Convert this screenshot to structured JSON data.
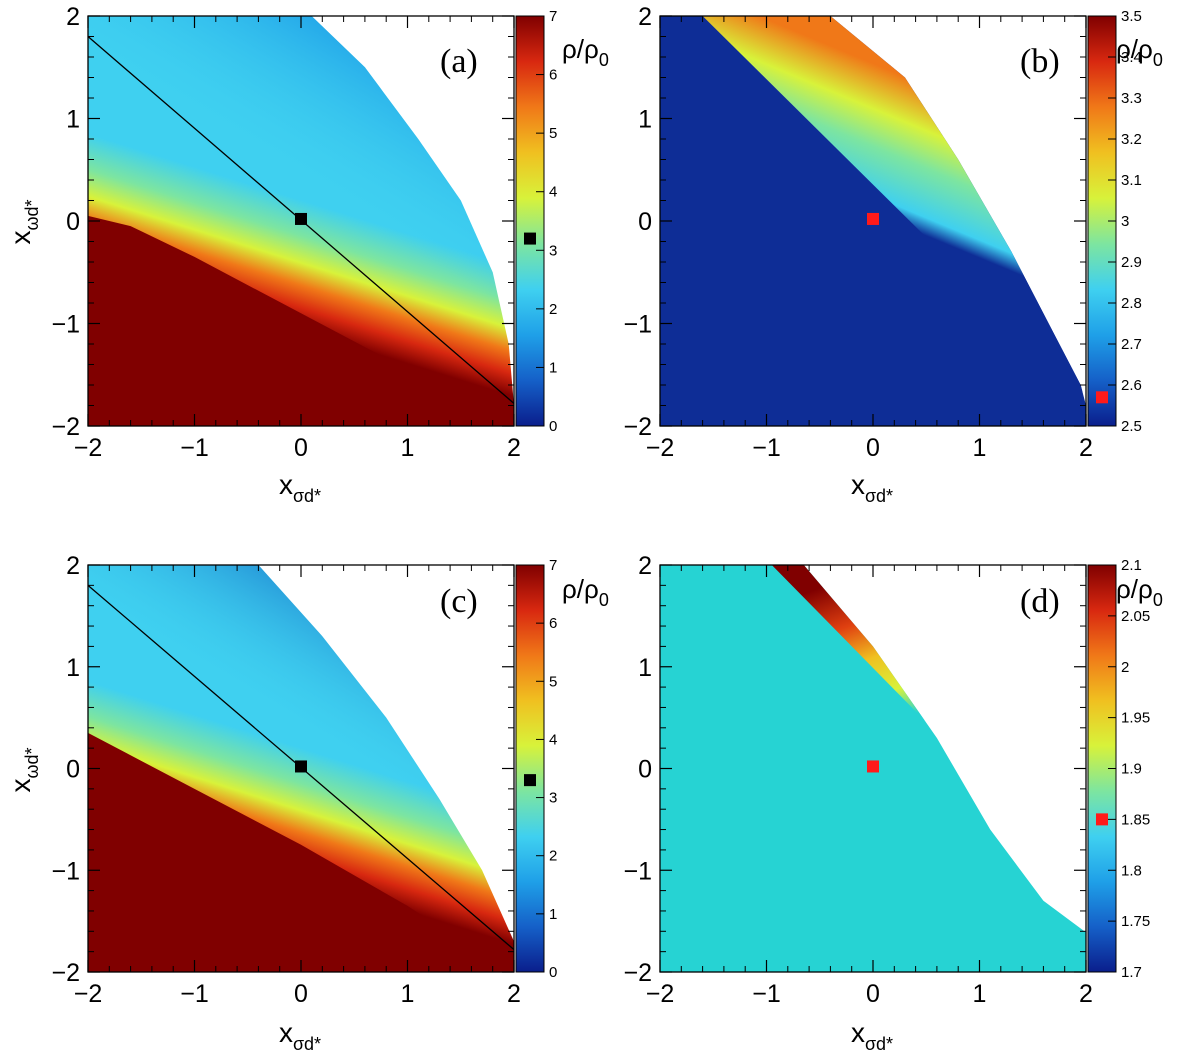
{
  "colors": {
    "colormap": [
      "#0a1e8c",
      "#1560c8",
      "#1fa0e8",
      "#3fd0f0",
      "#7de5a0",
      "#d8f23a",
      "#f0c020",
      "#f07818",
      "#d82810",
      "#800000"
    ],
    "contour_line": "#000000",
    "marker_black": "#000000",
    "marker_red": "#ff1a1a",
    "flat_teal": "#26d3d3",
    "flat_navy": "#0e2d96"
  },
  "chart_data": [
    {
      "id": "a",
      "type": "heatmap",
      "panel_tag": "(a)",
      "xlabel": "x",
      "xlabel_sub": "σd*",
      "ylabel": "x",
      "ylabel_sub": "ωd*",
      "xlim": [
        -2,
        2
      ],
      "ylim": [
        -2,
        2
      ],
      "x_ticks": [
        "−2",
        "−1",
        "0",
        "1",
        "2"
      ],
      "y_ticks": [
        "−2",
        "−1",
        "0",
        "1",
        "2"
      ],
      "colorbar": {
        "label": "ρ/ρ",
        "label_sub": "0",
        "range": [
          0,
          7
        ],
        "ticks": [
          "0",
          "1",
          "2",
          "3",
          "4",
          "5",
          "6",
          "7"
        ]
      },
      "allowed_region_upper_boundary": [
        [
          0.1,
          2
        ],
        [
          0.6,
          1.5
        ],
        [
          1.1,
          0.8
        ],
        [
          1.5,
          0.2
        ],
        [
          1.8,
          -0.5
        ],
        [
          1.95,
          -1.2
        ],
        [
          2,
          -1.8
        ]
      ],
      "contour_line": [
        [
          -2,
          1.8
        ],
        [
          2,
          -1.78
        ]
      ],
      "marker": {
        "x": 0.0,
        "y": 0.02,
        "color": "black",
        "colorbar_value": 3.2
      },
      "saturated_value": 7
    },
    {
      "id": "b",
      "type": "heatmap",
      "panel_tag": "(b)",
      "xlabel": "x",
      "xlabel_sub": "σd*",
      "ylabel": "",
      "ylabel_sub": "",
      "xlim": [
        -2,
        2
      ],
      "ylim": [
        -2,
        2
      ],
      "x_ticks": [
        "−2",
        "−1",
        "0",
        "1",
        "2"
      ],
      "y_ticks": [
        "−2",
        "−1",
        "0",
        "1",
        "2"
      ],
      "colorbar": {
        "label": "ρ/ρ",
        "label_sub": "0",
        "range": [
          2.5,
          3.5
        ],
        "ticks": [
          "2.5",
          "2.6",
          "2.7",
          "2.8",
          "2.9",
          "3",
          "3.1",
          "3.2",
          "3.3",
          "3.4",
          "3.5"
        ]
      },
      "allowed_region_upper_boundary": [
        [
          -0.4,
          2
        ],
        [
          0.3,
          1.4
        ],
        [
          0.8,
          0.6
        ],
        [
          1.3,
          -0.3
        ],
        [
          1.7,
          -1.1
        ],
        [
          1.95,
          -1.6
        ],
        [
          2.05,
          -2
        ]
      ],
      "marker": {
        "x": 0.0,
        "y": 0.02,
        "color": "red",
        "colorbar_value": 2.57
      },
      "floor_value": 2.5
    },
    {
      "id": "c",
      "type": "heatmap",
      "panel_tag": "(c)",
      "xlabel": "x",
      "xlabel_sub": "σd*",
      "ylabel": "x",
      "ylabel_sub": "ωd*",
      "xlim": [
        -2,
        2
      ],
      "ylim": [
        -2,
        2
      ],
      "x_ticks": [
        "−2",
        "−1",
        "0",
        "1",
        "2"
      ],
      "y_ticks": [
        "−2",
        "−1",
        "0",
        "1",
        "2"
      ],
      "colorbar": {
        "label": "ρ/ρ",
        "label_sub": "0",
        "range": [
          0,
          7
        ],
        "ticks": [
          "0",
          "1",
          "2",
          "3",
          "4",
          "5",
          "6",
          "7"
        ]
      },
      "allowed_region_upper_boundary": [
        [
          -0.4,
          2
        ],
        [
          0.2,
          1.3
        ],
        [
          0.8,
          0.5
        ],
        [
          1.3,
          -0.3
        ],
        [
          1.7,
          -1.0
        ],
        [
          2,
          -1.7
        ]
      ],
      "contour_line": [
        [
          -2,
          1.8
        ],
        [
          2,
          -1.78
        ]
      ],
      "marker": {
        "x": 0.0,
        "y": 0.02,
        "color": "black",
        "colorbar_value": 3.3
      },
      "saturated_value": 7
    },
    {
      "id": "d",
      "type": "heatmap",
      "panel_tag": "(d)",
      "xlabel": "x",
      "xlabel_sub": "σd*",
      "ylabel": "",
      "ylabel_sub": "",
      "xlim": [
        -2,
        2
      ],
      "ylim": [
        -2,
        2
      ],
      "x_ticks": [
        "−2",
        "−1",
        "0",
        "1",
        "2"
      ],
      "y_ticks": [
        "−2",
        "−1",
        "0",
        "1",
        "2"
      ],
      "colorbar": {
        "label": "ρ/ρ",
        "label_sub": "0",
        "range": [
          1.7,
          2.1
        ],
        "ticks": [
          "1.7",
          "1.75",
          "1.8",
          "1.85",
          "1.9",
          "1.95",
          "2",
          "2.05",
          "2.1"
        ]
      },
      "allowed_region_upper_boundary": [
        [
          -0.65,
          2
        ],
        [
          0.0,
          1.2
        ],
        [
          0.6,
          0.3
        ],
        [
          1.1,
          -0.6
        ],
        [
          1.6,
          -1.3
        ],
        [
          2.05,
          -1.65
        ]
      ],
      "marker": {
        "x": 0.0,
        "y": 0.02,
        "color": "red",
        "colorbar_value": 1.85
      },
      "floor_value": 1.83
    }
  ]
}
